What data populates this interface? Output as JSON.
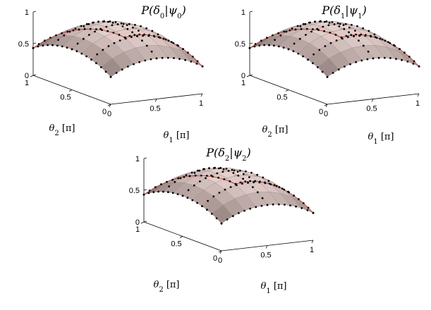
{
  "chart_data": [
    {
      "type": "surface",
      "title": {
        "main": "P(δ",
        "sub1": "0",
        "mid": "|ψ",
        "sub2": "0",
        "end": ")"
      },
      "x": [
        0,
        0.125,
        0.25,
        0.375,
        0.5,
        0.625,
        0.75,
        0.875,
        1
      ],
      "y": [
        0,
        0.125,
        0.25,
        0.375,
        0.5,
        0.625,
        0.75,
        0.875,
        1
      ],
      "x_ticks": [
        "0",
        "0.5",
        "1"
      ],
      "y_ticks": [
        "0",
        "0.5",
        "1"
      ],
      "z_ticks": [
        "0",
        "0.5",
        "1"
      ],
      "xlabel": {
        "sym": "θ",
        "sub": "1",
        "unit": "[π]"
      },
      "ylabel": {
        "sym": "θ",
        "sub": "2",
        "unit": "[π]"
      },
      "zlim": [
        0,
        1
      ],
      "peak": 0.95
    },
    {
      "type": "surface",
      "title": {
        "main": "P(δ",
        "sub1": "1",
        "mid": "|ψ",
        "sub2": "1",
        "end": ")"
      },
      "x": [
        0,
        0.125,
        0.25,
        0.375,
        0.5,
        0.625,
        0.75,
        0.875,
        1
      ],
      "y": [
        0,
        0.125,
        0.25,
        0.375,
        0.5,
        0.625,
        0.75,
        0.875,
        1
      ],
      "x_ticks": [
        "0",
        "0.5",
        "1"
      ],
      "y_ticks": [
        "0",
        "0.5",
        "1"
      ],
      "z_ticks": [
        "0",
        "0.5",
        "1"
      ],
      "xlabel": {
        "sym": "θ",
        "sub": "1",
        "unit": "[π]"
      },
      "ylabel": {
        "sym": "θ",
        "sub": "2",
        "unit": "[π]"
      },
      "zlim": [
        0,
        1
      ],
      "peak": 0.95
    },
    {
      "type": "surface",
      "title": {
        "main": "P(δ",
        "sub1": "2",
        "mid": "|ψ",
        "sub2": "2",
        "end": ")"
      },
      "x": [
        0,
        0.125,
        0.25,
        0.375,
        0.5,
        0.625,
        0.75,
        0.875,
        1
      ],
      "y": [
        0,
        0.125,
        0.25,
        0.375,
        0.5,
        0.625,
        0.75,
        0.875,
        1
      ],
      "x_ticks": [
        "0",
        "0.5",
        "1"
      ],
      "y_ticks": [
        "0",
        "0.5",
        "1"
      ],
      "z_ticks": [
        "0",
        "0.5",
        "1"
      ],
      "xlabel": {
        "sym": "θ",
        "sub": "1",
        "unit": "[π]"
      },
      "ylabel": {
        "sym": "θ",
        "sub": "2",
        "unit": "[π]"
      },
      "zlim": [
        0,
        1
      ],
      "peak": 0.95
    }
  ],
  "colors": {
    "surface_low": "#5c4a48",
    "surface_high": "#f1dcd8",
    "mesh": "#9a8a88",
    "edge": "#c0392b",
    "marker": "#000000",
    "axis": "#000000"
  }
}
